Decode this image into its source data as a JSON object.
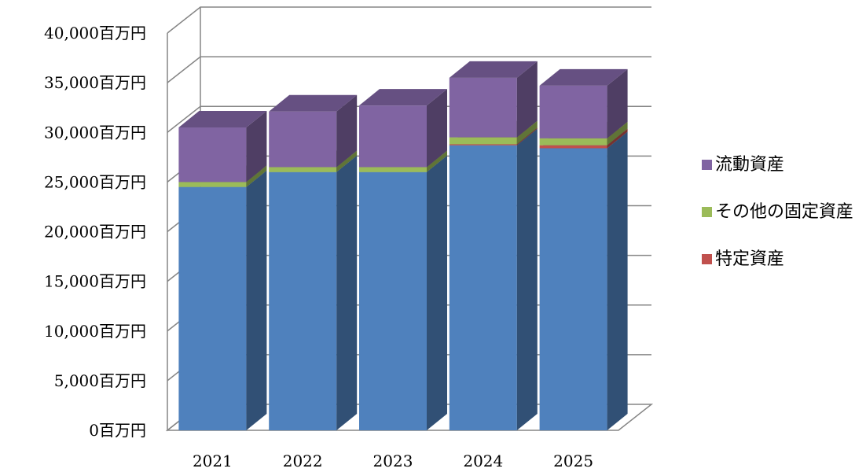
{
  "chart_data": {
    "type": "bar",
    "stacked": true,
    "three_d": true,
    "categories": [
      "2021",
      "2022",
      "2023",
      "2024",
      "2025"
    ],
    "series": [
      {
        "name": "",
        "values": [
          24500,
          26000,
          26000,
          28700,
          28400
        ],
        "color": "#4F81BD"
      },
      {
        "name": "特定資産",
        "values": [
          0,
          0,
          0,
          100,
          300
        ],
        "color": "#C0504D"
      },
      {
        "name": "その他の固定資産",
        "values": [
          500,
          500,
          500,
          700,
          700
        ],
        "color": "#9BBB59"
      },
      {
        "name": "流動資産",
        "values": [
          5500,
          5600,
          6200,
          6000,
          5300
        ],
        "color": "#8064A2"
      }
    ],
    "ylim": [
      0,
      40000
    ],
    "yticks": [
      0,
      5000,
      10000,
      15000,
      20000,
      25000,
      30000,
      35000,
      40000
    ],
    "ytick_labels": [
      "0百万円",
      "5,000百万円",
      "10,000百万円",
      "15,000百万円",
      "20,000百万円",
      "25,000百万円",
      "30,000百万円",
      "35,000百万円",
      "40,000百万円"
    ],
    "grid": true,
    "legend": "right",
    "legend_order": [
      "流動資産",
      "その他の固定資産",
      "特定資産"
    ],
    "title": "",
    "xlabel": "",
    "ylabel": ""
  }
}
